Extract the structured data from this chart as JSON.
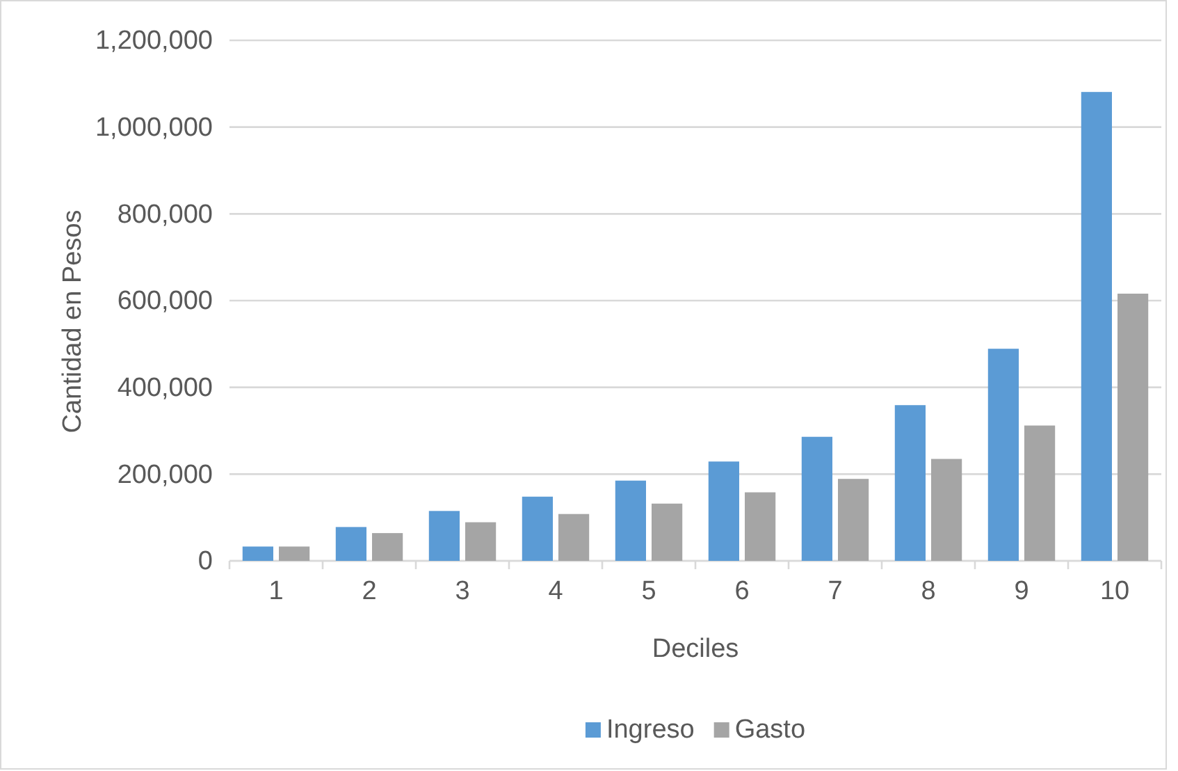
{
  "chart_data": {
    "type": "bar",
    "xlabel": "Deciles",
    "ylabel": "Cantidad en Pesos",
    "categories": [
      "1",
      "2",
      "3",
      "4",
      "5",
      "6",
      "7",
      "8",
      "9",
      "10"
    ],
    "series": [
      {
        "name": "Ingreso",
        "color": "#5b9bd5",
        "values": [
          33000,
          78000,
          115000,
          148000,
          185000,
          229000,
          286000,
          359000,
          489000,
          1081000
        ]
      },
      {
        "name": "Gasto",
        "color": "#a5a5a5",
        "values": [
          33000,
          64000,
          89000,
          108000,
          132000,
          158000,
          189000,
          235000,
          312000,
          616000
        ]
      }
    ],
    "ylim": [
      0,
      1200000
    ],
    "yticks": [
      {
        "value": 0,
        "label": "0"
      },
      {
        "value": 200000,
        "label": "200,000"
      },
      {
        "value": 400000,
        "label": "400,000"
      },
      {
        "value": 600000,
        "label": "600,000"
      },
      {
        "value": 800000,
        "label": "800,000"
      },
      {
        "value": 1000000,
        "label": "1,000,000"
      },
      {
        "value": 1200000,
        "label": "1,200,000"
      }
    ],
    "grid": "y",
    "legend": "bottom"
  }
}
